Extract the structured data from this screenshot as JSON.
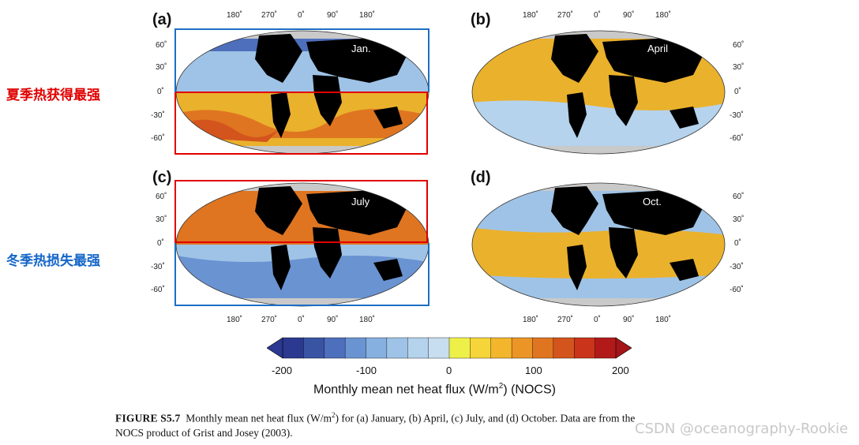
{
  "panels": [
    {
      "letter": "(a)",
      "month": "Jan."
    },
    {
      "letter": "(b)",
      "month": "April"
    },
    {
      "letter": "(c)",
      "month": "July"
    },
    {
      "letter": "(d)",
      "month": "Oct."
    }
  ],
  "lon_labels": [
    "180˚",
    "270˚",
    "0˚",
    "90˚",
    "180˚"
  ],
  "lat_labels": [
    "60˚",
    "30˚",
    "0˚",
    "-30˚",
    "-60˚"
  ],
  "annotations": {
    "summer": "夏季热获得最强",
    "winter": "冬季热损失最强"
  },
  "colorbar": {
    "ticks": [
      "-200",
      "-100",
      "0",
      "100",
      "200"
    ],
    "title_prefix": "Monthly mean net heat flux (W/m",
    "title_sup": "2",
    "title_suffix": ") (NOCS)",
    "colors": [
      "#2b3990",
      "#3a54a4",
      "#4e6fbc",
      "#6a93d2",
      "#86b0df",
      "#9fc3e6",
      "#b5d3ec",
      "#c7def0",
      "#eef04a",
      "#f6d53a",
      "#f2b52c",
      "#ea9526",
      "#df7521",
      "#d4541d",
      "#c9341a",
      "#b21a1a"
    ]
  },
  "caption": {
    "label": "FIGURE S5.7",
    "line1": "Monthly mean net heat flux (W/m",
    "sup": "2",
    "line1b": ") for (a) January, (b) April, (c) July, and (d) October. Data are from the",
    "line2": "NOCS product of Grist and Josey (2003)."
  },
  "watermark": "CSDN @oceanography-Rookie",
  "colors": {
    "annotation_red": "#e00000",
    "annotation_blue": "#1466c8",
    "box_red": "#e00000",
    "box_blue": "#1c6fc4"
  }
}
